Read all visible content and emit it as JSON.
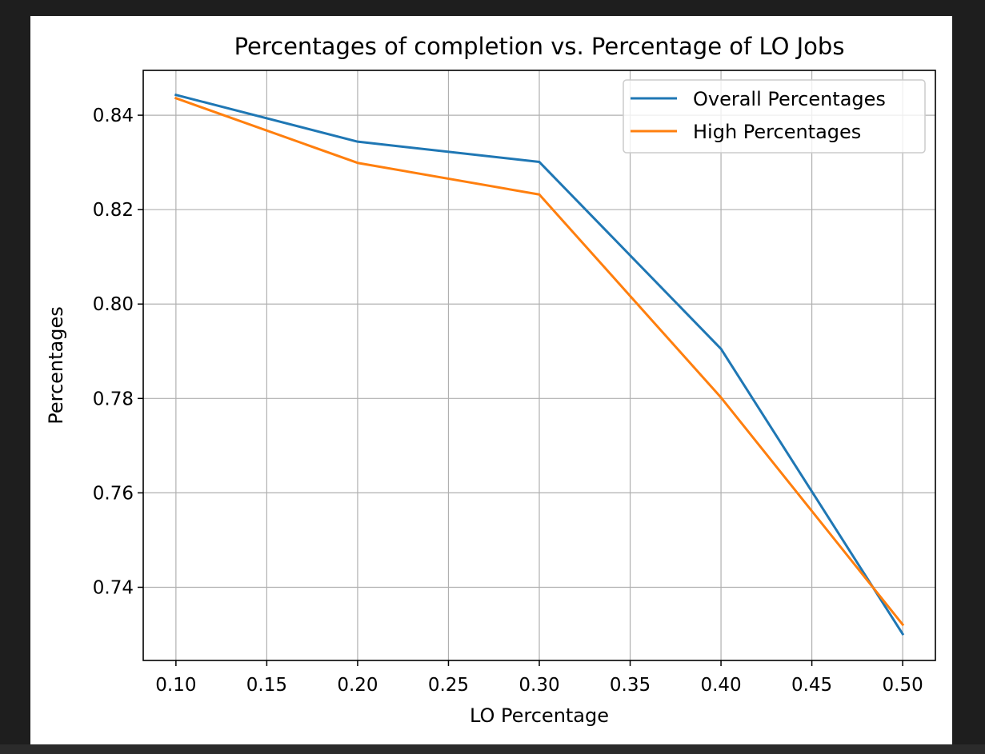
{
  "chart_data": {
    "type": "line",
    "title": "Percentages of completion vs. Percentage of LO Jobs",
    "xlabel": "LO Percentage",
    "ylabel": "Percentages",
    "x": [
      0.1,
      0.2,
      0.3,
      0.4,
      0.5
    ],
    "xlim": [
      0.082,
      0.518
    ],
    "ylim": [
      0.7245,
      0.8495
    ],
    "xticks": [
      0.1,
      0.15,
      0.2,
      0.25,
      0.3,
      0.35,
      0.4,
      0.45,
      0.5
    ],
    "xtick_labels": [
      "0.10",
      "0.15",
      "0.20",
      "0.25",
      "0.30",
      "0.35",
      "0.40",
      "0.45",
      "0.50"
    ],
    "yticks": [
      0.74,
      0.76,
      0.78,
      0.8,
      0.82,
      0.84
    ],
    "ytick_labels": [
      "0.74",
      "0.76",
      "0.78",
      "0.80",
      "0.82",
      "0.84"
    ],
    "grid": true,
    "legend_position": "top-right",
    "series": [
      {
        "name": "Overall Percentages",
        "color": "#1f77b4",
        "values": [
          0.8443,
          0.8344,
          0.8301,
          0.7905,
          0.7301
        ]
      },
      {
        "name": "High Percentages",
        "color": "#ff7f0e",
        "values": [
          0.8436,
          0.8299,
          0.8232,
          0.7802,
          0.7321
        ]
      }
    ]
  }
}
